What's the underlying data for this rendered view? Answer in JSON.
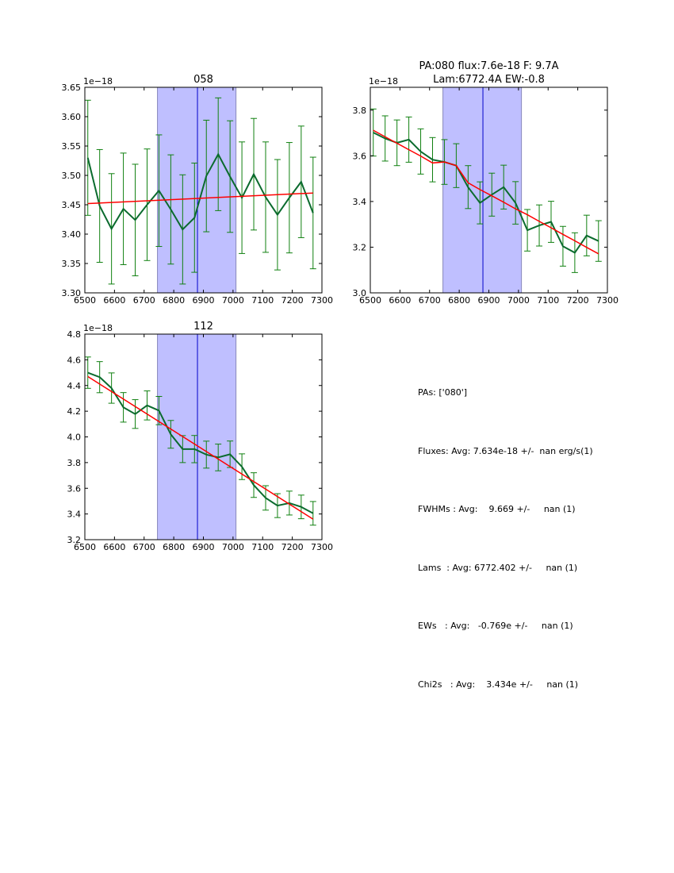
{
  "chart_data": [
    {
      "type": "line",
      "title": "058",
      "title_lines": [
        "058"
      ],
      "offset_label": "1e−18",
      "xlim": [
        6500,
        7300
      ],
      "ylim": [
        3.3,
        3.65
      ],
      "xticks": [
        6500,
        6600,
        6700,
        6800,
        6900,
        7000,
        7100,
        7200,
        7300
      ],
      "yticks": [
        3.3,
        3.35,
        3.4,
        3.45,
        3.5,
        3.55,
        3.6,
        3.65
      ],
      "ytick_labels": [
        "3.30",
        "3.35",
        "3.40",
        "3.45",
        "3.50",
        "3.55",
        "3.60",
        "3.65"
      ],
      "shaded_region": [
        6745,
        7010
      ],
      "vline": 6880,
      "series": [
        {
          "name": "data",
          "color": "#0b6b2e",
          "x": [
            6510,
            6550,
            6590,
            6630,
            6670,
            6710,
            6750,
            6790,
            6830,
            6870,
            6910,
            6950,
            6990,
            7030,
            7070,
            7110,
            7150,
            7190,
            7230,
            7270
          ],
          "y": [
            3.53,
            3.448,
            3.409,
            3.443,
            3.424,
            3.45,
            3.474,
            3.442,
            3.408,
            3.428,
            3.499,
            3.536,
            3.498,
            3.462,
            3.502,
            3.463,
            3.433,
            3.462,
            3.489,
            3.436
          ],
          "err": [
            0.098,
            0.096,
            0.094,
            0.095,
            0.095,
            0.095,
            0.095,
            0.093,
            0.093,
            0.093,
            0.095,
            0.096,
            0.095,
            0.095,
            0.095,
            0.094,
            0.094,
            0.094,
            0.095,
            0.095
          ]
        },
        {
          "name": "fit",
          "color": "#ff0000",
          "x": [
            6510,
            7270
          ],
          "y": [
            3.452,
            3.47
          ]
        }
      ]
    },
    {
      "type": "line",
      "title": "PA:080 flux:7.6e-18 F: 9.7A\nLam:6772.4A EW:-0.8",
      "title_lines": [
        "PA:080 flux:7.6e-18 F: 9.7A",
        "Lam:6772.4A EW:-0.8"
      ],
      "offset_label": "1e−18",
      "xlim": [
        6500,
        7300
      ],
      "ylim": [
        3.0,
        3.9
      ],
      "xticks": [
        6500,
        6600,
        6700,
        6800,
        6900,
        7000,
        7100,
        7200,
        7300
      ],
      "yticks": [
        3.0,
        3.2,
        3.4,
        3.6,
        3.8
      ],
      "ytick_labels": [
        "3.0",
        "3.2",
        "3.4",
        "3.6",
        "3.8"
      ],
      "shaded_region": [
        6745,
        7010
      ],
      "vline": 6880,
      "series": [
        {
          "name": "data",
          "color": "#0b6b2e",
          "x": [
            6510,
            6550,
            6590,
            6630,
            6670,
            6710,
            6750,
            6790,
            6830,
            6870,
            6910,
            6950,
            6990,
            7030,
            7070,
            7110,
            7150,
            7190,
            7230,
            7270
          ],
          "y": [
            3.702,
            3.676,
            3.657,
            3.671,
            3.619,
            3.583,
            3.573,
            3.557,
            3.463,
            3.394,
            3.43,
            3.463,
            3.394,
            3.274,
            3.295,
            3.311,
            3.204,
            3.176,
            3.251,
            3.227
          ],
          "err": [
            0.103,
            0.099,
            0.1,
            0.099,
            0.099,
            0.097,
            0.098,
            0.096,
            0.094,
            0.092,
            0.094,
            0.096,
            0.093,
            0.091,
            0.09,
            0.09,
            0.087,
            0.087,
            0.089,
            0.089
          ]
        },
        {
          "name": "fit",
          "color": "#ff0000",
          "x": [
            6510,
            6550,
            6590,
            6630,
            6670,
            6710,
            6750,
            6790,
            6830,
            6870,
            6910,
            6950,
            6990,
            7030,
            7070,
            7110,
            7150,
            7190,
            7230,
            7270
          ],
          "y": [
            3.712,
            3.683,
            3.655,
            3.627,
            3.599,
            3.569,
            3.573,
            3.557,
            3.482,
            3.452,
            3.425,
            3.397,
            3.368,
            3.342,
            3.313,
            3.285,
            3.256,
            3.228,
            3.199,
            3.171
          ]
        }
      ]
    },
    {
      "type": "line",
      "title": "112",
      "title_lines": [
        "112"
      ],
      "offset_label": "1e−18",
      "xlim": [
        6500,
        7300
      ],
      "ylim": [
        3.2,
        4.8
      ],
      "xticks": [
        6500,
        6600,
        6700,
        6800,
        6900,
        7000,
        7100,
        7200,
        7300
      ],
      "yticks": [
        3.2,
        3.4,
        3.6,
        3.8,
        4.0,
        4.2,
        4.4,
        4.6,
        4.8
      ],
      "ytick_labels": [
        "3.2",
        "3.4",
        "3.6",
        "3.8",
        "4.0",
        "4.2",
        "4.4",
        "4.6",
        "4.8"
      ],
      "shaded_region": [
        6745,
        7010
      ],
      "vline": 6880,
      "series": [
        {
          "name": "data",
          "color": "#0b6b2e",
          "x": [
            6510,
            6550,
            6590,
            6630,
            6670,
            6710,
            6750,
            6790,
            6830,
            6870,
            6910,
            6950,
            6990,
            7030,
            7070,
            7110,
            7150,
            7190,
            7230,
            7270
          ],
          "y": [
            4.5,
            4.465,
            4.38,
            4.23,
            4.178,
            4.245,
            4.205,
            4.02,
            3.905,
            3.905,
            3.862,
            3.84,
            3.865,
            3.768,
            3.625,
            3.525,
            3.465,
            3.485,
            3.455,
            3.405
          ],
          "err": [
            0.122,
            0.121,
            0.118,
            0.115,
            0.112,
            0.113,
            0.11,
            0.108,
            0.105,
            0.106,
            0.105,
            0.104,
            0.103,
            0.1,
            0.096,
            0.095,
            0.093,
            0.093,
            0.092,
            0.092
          ]
        },
        {
          "name": "fit",
          "color": "#ff0000",
          "x": [
            6510,
            7270
          ],
          "y": [
            4.47,
            3.36
          ]
        }
      ]
    }
  ],
  "info_panel": {
    "lines": [
      "PAs: ['080']",
      "Fluxes: Avg: 7.634e-18 +/-  nan erg/s(1)",
      "FWHMs : Avg:    9.669 +/-     nan (1)",
      "Lams  : Avg: 6772.402 +/-     nan (1)",
      "EWs   : Avg:   -0.769e +/-     nan (1)",
      "Chi2s   : Avg:    3.434e +/-     nan (1)"
    ]
  },
  "colors": {
    "data_line": "#0b6b2e",
    "errorbar": "#108010",
    "fit_line": "#ff0000",
    "shade_fill": "#bfbfff",
    "shade_edge": "#8888bb",
    "vline": "#0000cc"
  }
}
